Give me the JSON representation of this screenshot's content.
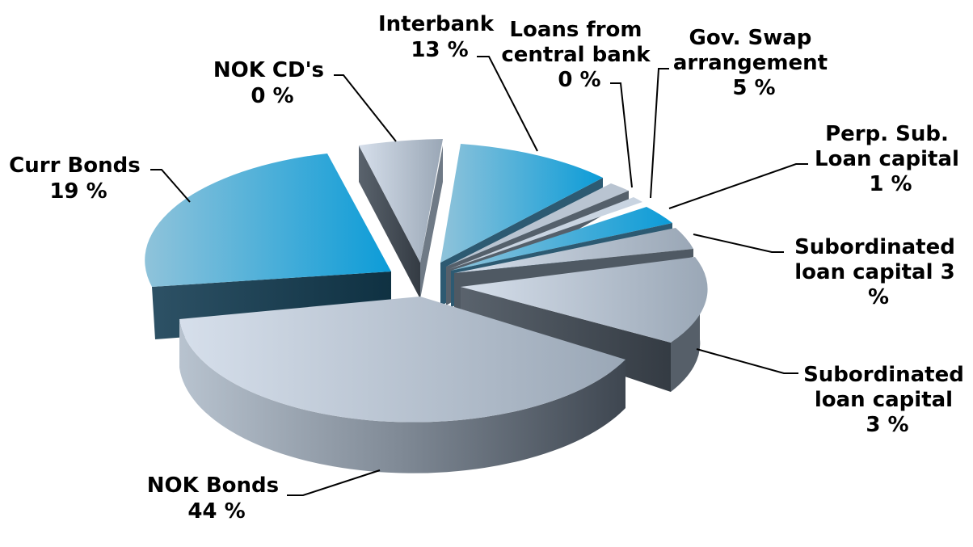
{
  "chart_data": {
    "type": "pie",
    "title": "",
    "exploded": true,
    "three_d": true,
    "slices": [
      {
        "key": "nok_bonds",
        "label_lines": [
          "NOK Bonds",
          "44 %"
        ],
        "label": "NOK Bonds",
        "value_label": "44 %",
        "value": 44,
        "shading": "light-gray"
      },
      {
        "key": "curr_bonds",
        "label_lines": [
          "Curr Bonds",
          "19 %"
        ],
        "label": "Curr Bonds",
        "value_label": "19 %",
        "value": 19,
        "shading": "blue"
      },
      {
        "key": "nok_cds",
        "label_lines": [
          "NOK CD's",
          "0 %"
        ],
        "label": "NOK CD's",
        "value_label": "0 %",
        "value": 0,
        "shading": "light-gray"
      },
      {
        "key": "interbank",
        "label_lines": [
          "Interbank",
          "13 %"
        ],
        "label": "Interbank",
        "value_label": "13 %",
        "value": 13,
        "shading": "blue"
      },
      {
        "key": "loans_central_bank",
        "label_lines": [
          "Loans from",
          "central bank",
          "0 %"
        ],
        "label": "Loans from central bank",
        "value_label": "0 %",
        "value": 0,
        "shading": "light-gray"
      },
      {
        "key": "gov_swap",
        "label_lines": [
          "Gov. Swap",
          "arrangement",
          "5 %"
        ],
        "label": "Gov. Swap arrangement",
        "value_label": "5 %",
        "value": 5,
        "shading": "light-gray"
      },
      {
        "key": "perp_sub_loan",
        "label_lines": [
          "Perp. Sub.",
          "Loan capital",
          "1 %"
        ],
        "label": "Perp. Sub. Loan capital",
        "value_label": "1 %",
        "value": 1,
        "shading": "blue"
      },
      {
        "key": "subordinated_loan_a",
        "label_lines": [
          "Subordinated",
          "loan capital 3",
          "%"
        ],
        "label": "Subordinated loan capital",
        "value_label": "3 %",
        "value": 3,
        "shading": "light-gray"
      },
      {
        "key": "subordinated_loan_b",
        "label_lines": [
          "Subordinated",
          "loan capital",
          "3 %"
        ],
        "label": "Subordinated loan capital",
        "value_label": "3 %",
        "value": 3,
        "shading": "light-gray"
      }
    ]
  },
  "colors": {
    "blue_light": "#7fbad6",
    "blue_dark": "#0e9ad6",
    "blue_side": "#2a4a5e",
    "gray_light": "#c9d5e3",
    "gray_dark": "#9aa6b4",
    "gray_side": "#4b5560"
  }
}
